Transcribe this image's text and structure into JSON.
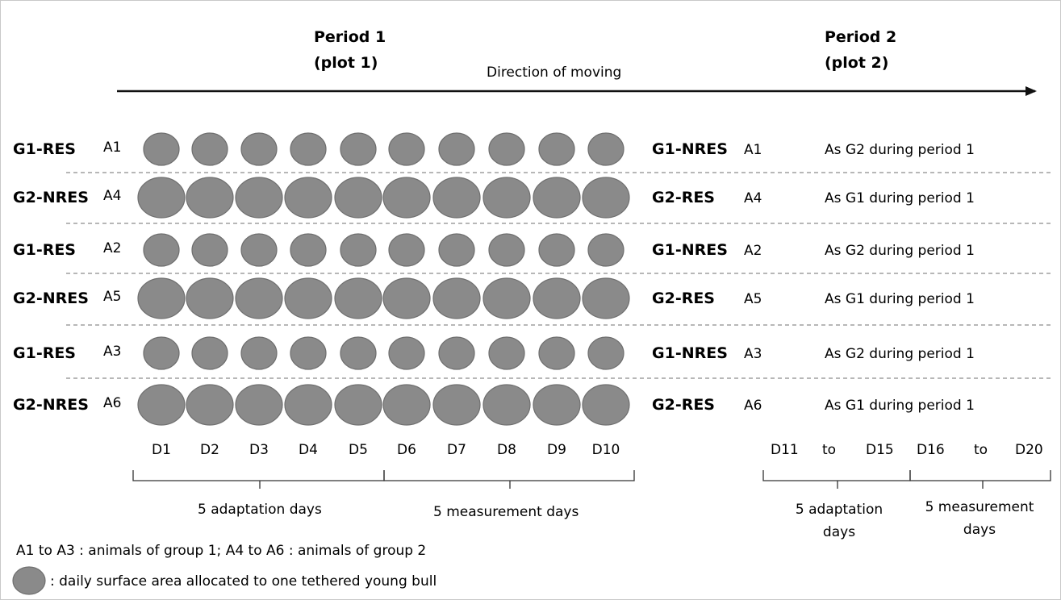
{
  "colors": {
    "circle_fill": "#8a8a8a",
    "circle_stroke": "#6f6f6f",
    "line": "#222222",
    "dash": "#8c8c8c",
    "text": "#111111"
  },
  "header": {
    "period1": [
      "Period 1",
      "(plot 1)"
    ],
    "period2": [
      "Period 2",
      "(plot 2)"
    ],
    "direction": "Direction of moving"
  },
  "rows": [
    {
      "group": "G1-RES",
      "animal": "A1",
      "size": "small",
      "p2_group": "G1-NRES",
      "p2_animal": "A1",
      "p2_note": "As G2 during period 1"
    },
    {
      "group": "G2-NRES",
      "animal": "A4",
      "size": "large",
      "p2_group": "G2-RES",
      "p2_animal": "A4",
      "p2_note": "As G1 during period 1"
    },
    {
      "group": "G1-RES",
      "animal": "A2",
      "size": "small",
      "p2_group": "G1-NRES",
      "p2_animal": "A2",
      "p2_note": "As G2 during period 1"
    },
    {
      "group": "G2-NRES",
      "animal": "A5",
      "size": "large",
      "p2_group": "G2-RES",
      "p2_animal": "A5",
      "p2_note": "As G1 during period 1"
    },
    {
      "group": "G1-RES",
      "animal": "A3",
      "size": "small",
      "p2_group": "G1-NRES",
      "p2_animal": "A3",
      "p2_note": "As G2 during period 1"
    },
    {
      "group": "G2-NRES",
      "animal": "A6",
      "size": "large",
      "p2_group": "G2-RES",
      "p2_animal": "A6",
      "p2_note": "As G1 during period 1"
    }
  ],
  "days_period1": [
    "D1",
    "D2",
    "D3",
    "D4",
    "D5",
    "D6",
    "D7",
    "D8",
    "D9",
    "D10"
  ],
  "days_period2": {
    "range1": [
      "D11",
      "to",
      "D15"
    ],
    "range2": [
      "D16",
      "to",
      "D20"
    ]
  },
  "braces": {
    "p1_adaptation": "5 adaptation days",
    "p1_measurement": "5 measurement days",
    "p2_adaptation": [
      "5 adaptation",
      "days"
    ],
    "p2_measurement": [
      "5 measurement",
      "days"
    ]
  },
  "legend": {
    "animals_note": "A1 to A3 : animals of group 1; A4 to A6 : animals of group 2",
    "circle_note": ": daily surface area allocated to one tethered young bull"
  }
}
